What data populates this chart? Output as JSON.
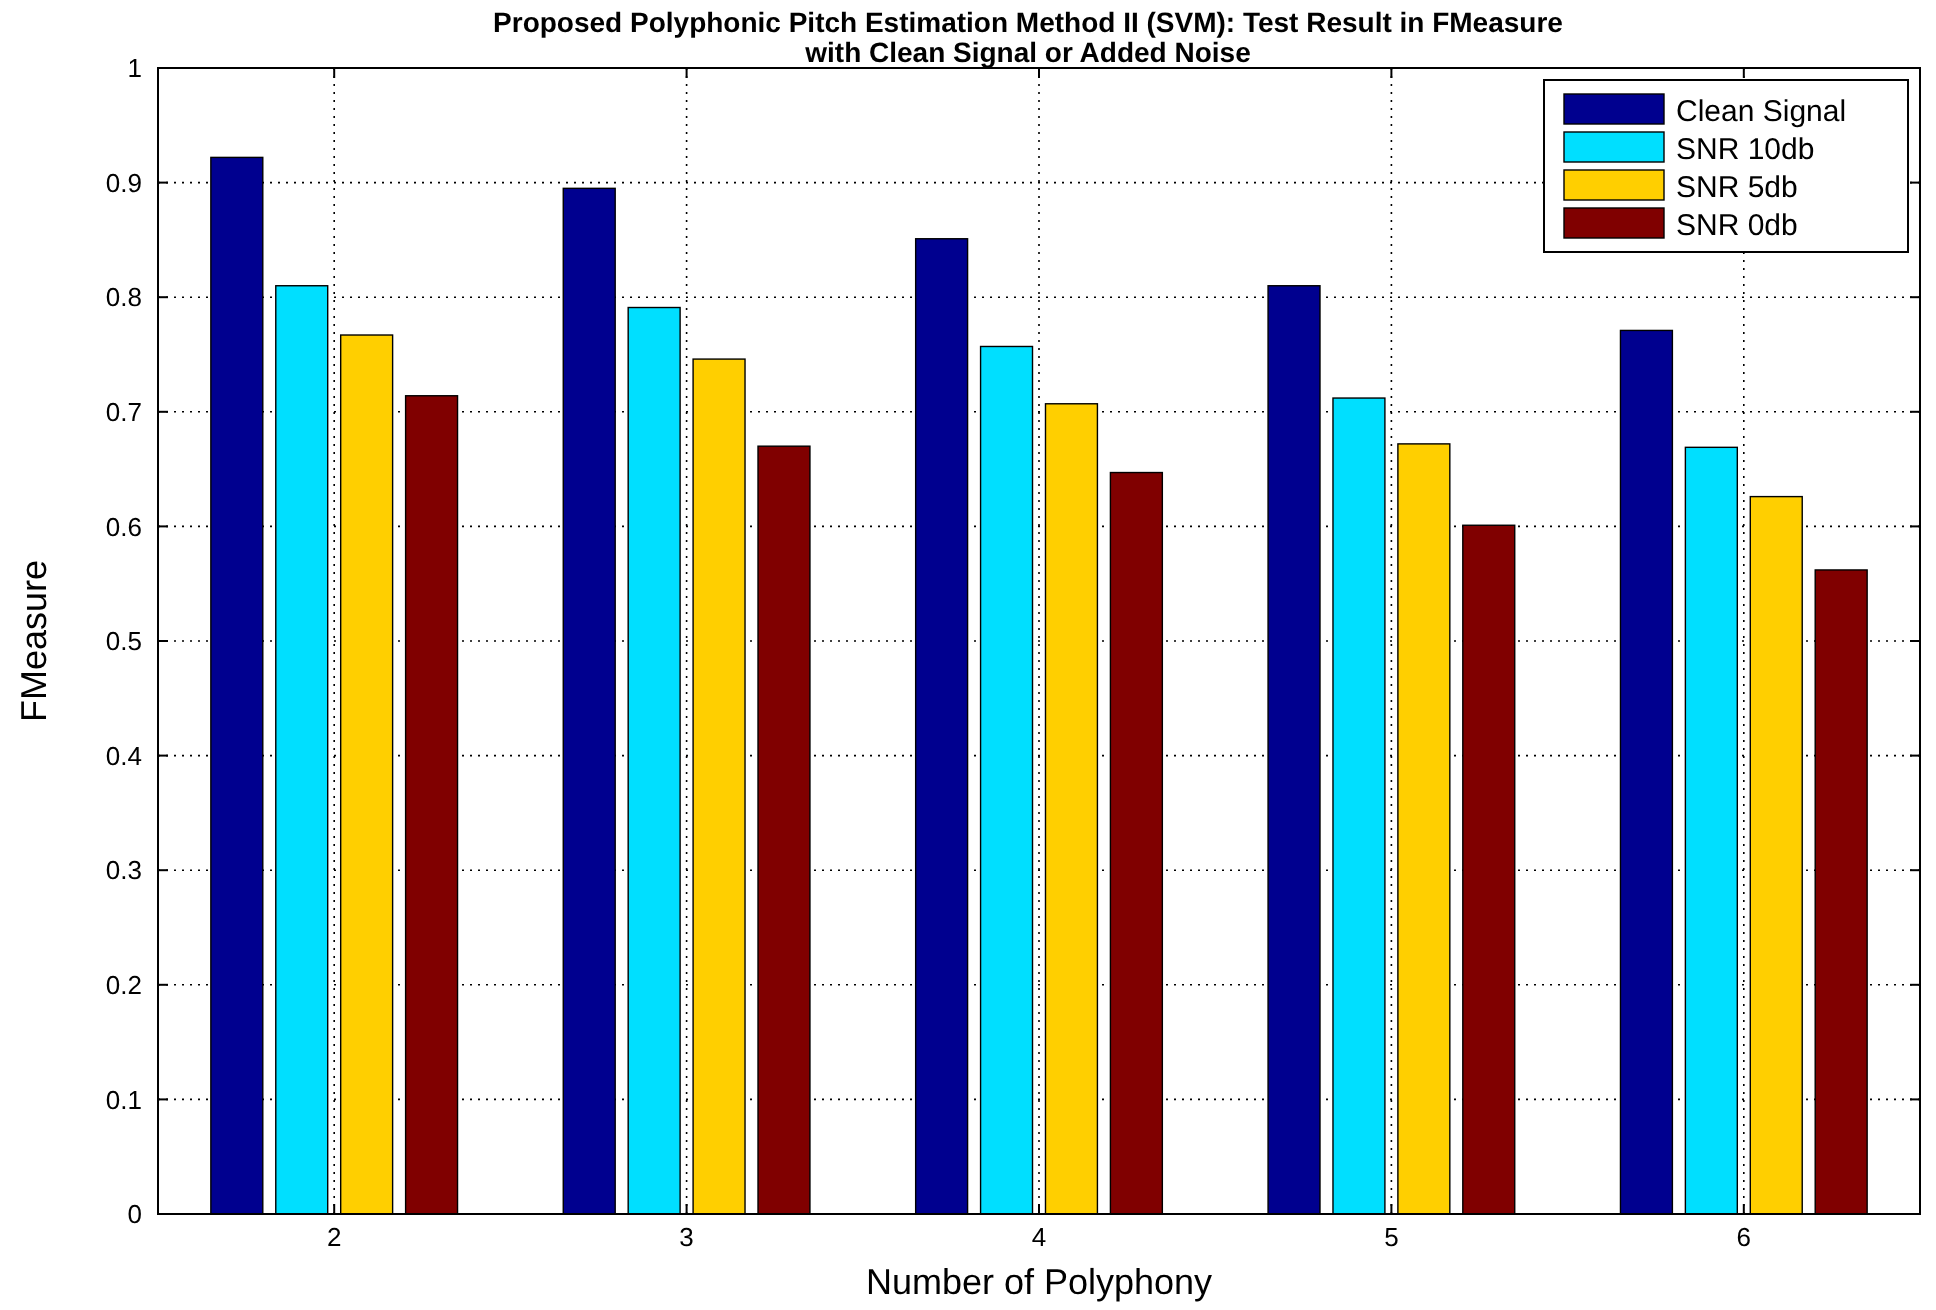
{
  "chart_data": {
    "type": "bar",
    "title": "Proposed Polyphonic Pitch Estimation Method II (SVM): Test Result in FMeasure",
    "subtitle": "with Clean Signal or Added Noise",
    "xlabel": "Number of Polyphony",
    "ylabel": "FMeasure",
    "categories": [
      "2",
      "3",
      "4",
      "5",
      "6"
    ],
    "series": [
      {
        "name": "Clean Signal",
        "color": "#00008f",
        "values": [
          0.922,
          0.895,
          0.851,
          0.81,
          0.771
        ]
      },
      {
        "name": "SNR 10db",
        "color": "#00dfff",
        "values": [
          0.81,
          0.791,
          0.757,
          0.712,
          0.669
        ]
      },
      {
        "name": "SNR 5db",
        "color": "#ffcf00",
        "values": [
          0.767,
          0.746,
          0.707,
          0.672,
          0.626
        ]
      },
      {
        "name": "SNR 0db",
        "color": "#800000",
        "values": [
          0.714,
          0.67,
          0.647,
          0.601,
          0.562
        ]
      }
    ],
    "ylim": [
      0,
      1
    ],
    "yticks": [
      0,
      0.1,
      0.2,
      0.3,
      0.4,
      0.5,
      0.6,
      0.7,
      0.8,
      0.9,
      1
    ],
    "grid": true,
    "legend": "top right"
  }
}
